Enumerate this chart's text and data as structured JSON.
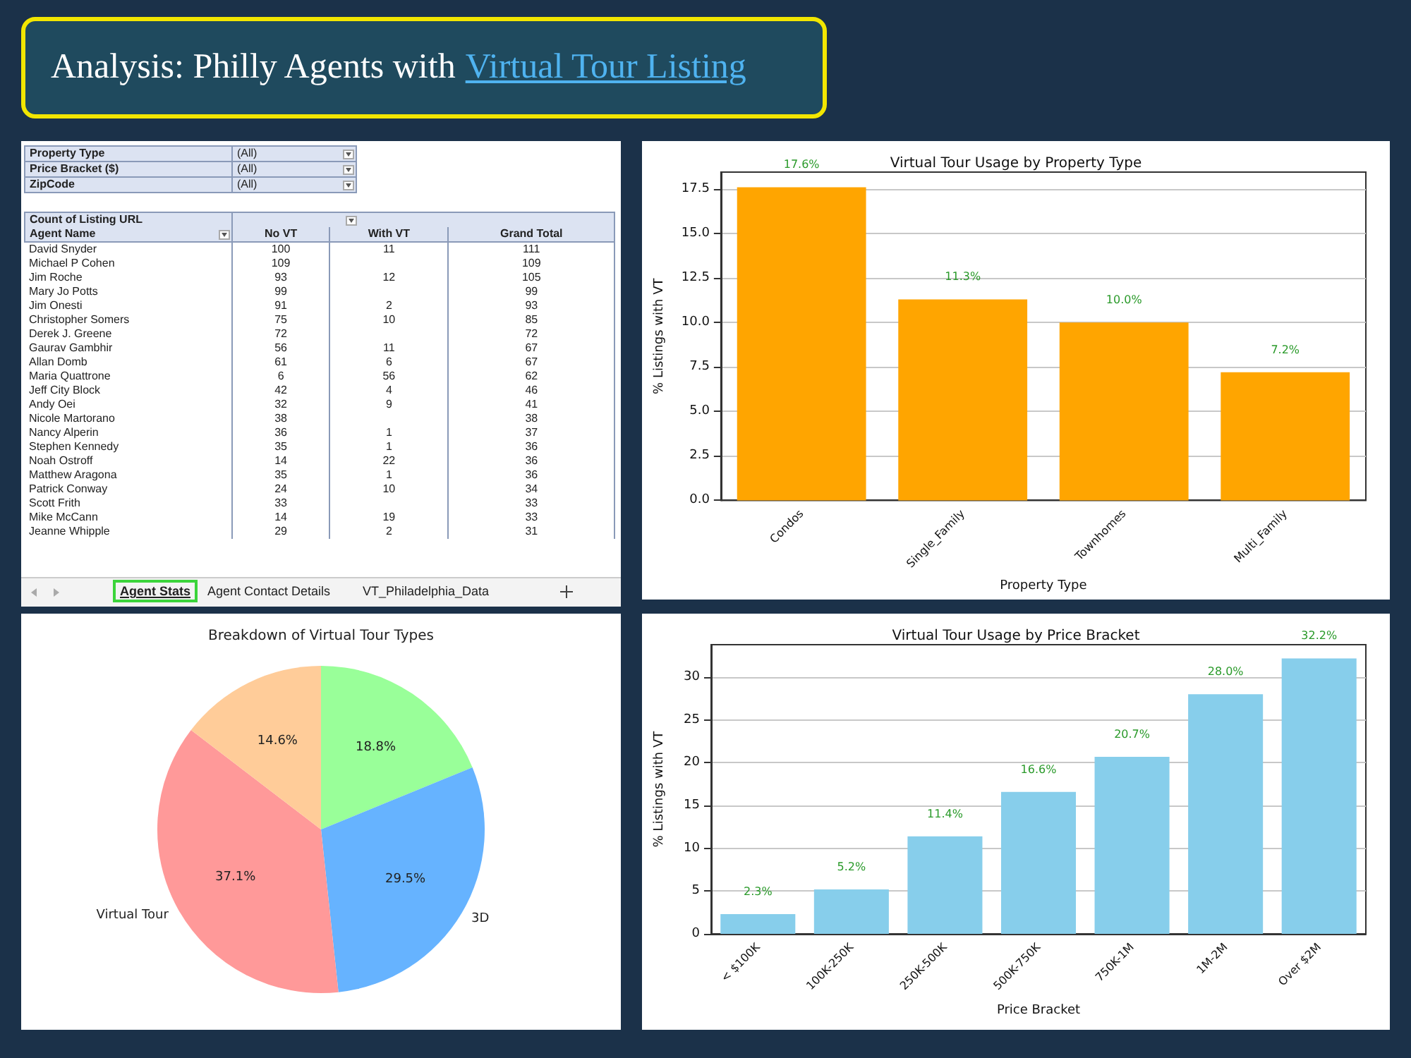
{
  "chart_data": [
    {
      "type": "other",
      "title": "Analysis: Philly Agents with",
      "subtitle": "Virtual Tour Listing",
      "xlabel": "Agent Name",
      "ylabel": "Count of Listing URL",
      "annotations": [
        "Property Type",
        "(All)",
        "Price Bracket ($)",
        "(All)",
        "ZipCode",
        "(All)",
        "Agent Stats",
        "Agent Contact Details",
        "VT_Philadelphia_Data"
      ],
      "categories": [
        "David Snyder",
        "Michael P Cohen",
        "Jim Roche",
        "Mary Jo Potts",
        "Jim Onesti",
        "Christopher Somers",
        "Derek J. Greene",
        "Gaurav Gambhir",
        "Allan Domb",
        "Maria Quattrone",
        "Jeff City Block",
        "Andy Oei",
        "Nicole Martorano",
        "Nancy Alperin",
        "Stephen Kennedy",
        "Noah Ostroff",
        "Matthew Aragona",
        "Patrick Conway",
        "Scott Frith",
        "Mike McCann",
        "Jeanne Whipple"
      ],
      "series": [
        {
          "name": "No VT",
          "values": [
            100,
            109,
            93,
            99,
            91,
            75,
            72,
            56,
            61,
            6,
            42,
            32,
            38,
            36,
            35,
            14,
            35,
            24,
            33,
            14,
            29
          ]
        },
        {
          "name": "With VT",
          "values": [
            11,
            null,
            12,
            null,
            2,
            10,
            null,
            11,
            6,
            56,
            4,
            9,
            null,
            1,
            1,
            22,
            1,
            10,
            null,
            19,
            2
          ]
        },
        {
          "name": "Grand Total",
          "values": [
            111,
            109,
            105,
            99,
            93,
            85,
            72,
            67,
            67,
            62,
            46,
            41,
            38,
            37,
            36,
            36,
            36,
            34,
            33,
            33,
            31
          ]
        }
      ],
      "data_labels": true
    },
    {
      "type": "bar",
      "title": "Virtual Tour Usage by Property Type",
      "xlabel": "Property Type",
      "ylabel": "% Listings with VT",
      "categories": [
        "Condos",
        "Single_Family",
        "Townhomes",
        "Multi_Family"
      ],
      "values": [
        17.6,
        11.3,
        10.0,
        7.2
      ],
      "color": "#ffa500",
      "value_labels": [
        "17.6%",
        "11.3%",
        "10.0%",
        "7.2%"
      ],
      "ylim": [
        0,
        18.45
      ],
      "yticks": [
        {
          "value": 0,
          "label": "0.0"
        },
        {
          "value": 2.5,
          "label": "2.5"
        },
        {
          "value": 5,
          "label": "5.0"
        },
        {
          "value": 7.5,
          "label": "7.5"
        },
        {
          "value": 10,
          "label": "10.0"
        },
        {
          "value": 12.5,
          "label": "12.5"
        },
        {
          "value": 15,
          "label": "15.0"
        },
        {
          "value": 17.5,
          "label": "17.5"
        }
      ],
      "grid": "y",
      "legend": false
    },
    {
      "type": "pie",
      "title": "Breakdown of Virtual Tour Types",
      "categories": [
        null,
        "3D",
        "Virtual Tour",
        null
      ],
      "values": [
        18.8,
        29.5,
        37.1,
        14.6
      ],
      "colors": [
        "#99ff99",
        "#66b3ff",
        "#ff9999",
        "#ffcc99"
      ],
      "value_labels": [
        "18.8%",
        "29.5%",
        "37.1%",
        "14.6%"
      ],
      "legend": false
    },
    {
      "type": "bar",
      "title": "Virtual Tour Usage by Price Bracket",
      "xlabel": "Price Bracket",
      "ylabel": "% Listings with VT",
      "categories": [
        "< $100K",
        "100K-250K",
        "250K-500K",
        "500K-750K",
        "750K-1M",
        "1M-2M",
        "Over $2M"
      ],
      "values": [
        2.3,
        5.2,
        11.4,
        16.6,
        20.7,
        28.0,
        32.2
      ],
      "color": "#87ceeb",
      "value_labels": [
        "2.3%",
        "5.2%",
        "11.4%",
        "16.6%",
        "20.7%",
        "28.0%",
        "32.2%"
      ],
      "ylim": [
        0,
        33.8
      ],
      "yticks": [
        0,
        5,
        10,
        15,
        20,
        25,
        30
      ],
      "grid": "y",
      "legend": false
    }
  ]
}
